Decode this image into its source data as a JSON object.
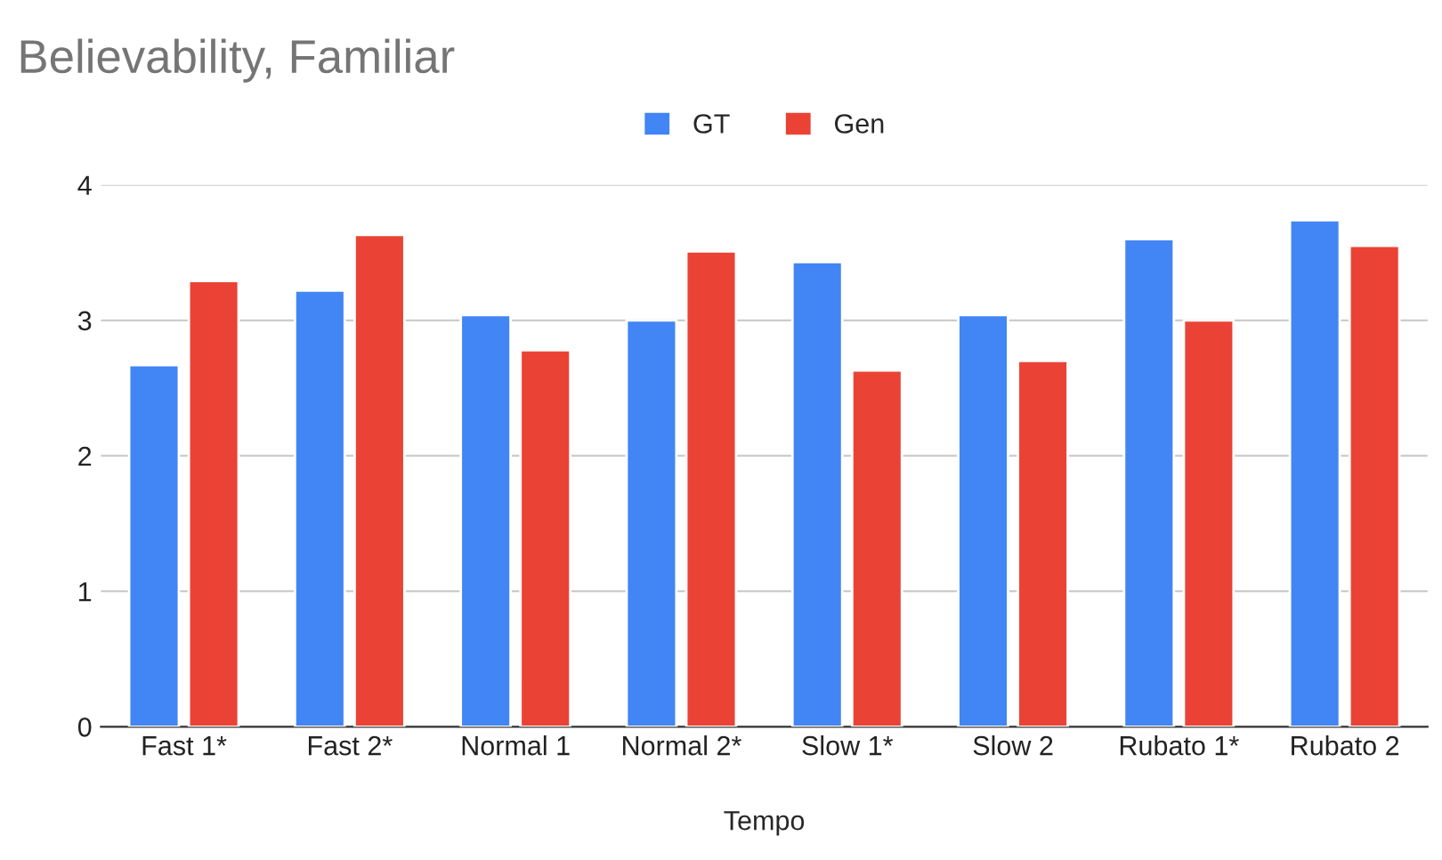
{
  "chart_data": {
    "type": "bar",
    "title": "Believability, Familiar",
    "xlabel": "Tempo",
    "categories": [
      "Fast 1*",
      "Fast 2*",
      "Normal 1",
      "Normal 2*",
      "Slow 1*",
      "Slow 2",
      "Rubato 1*",
      "Rubato 2"
    ],
    "series": [
      {
        "name": "GT",
        "color": "#4285f4",
        "values": [
          2.67,
          3.22,
          3.04,
          3.0,
          3.43,
          3.04,
          3.6,
          3.74
        ]
      },
      {
        "name": "Gen",
        "color": "#ea4335",
        "values": [
          3.29,
          3.63,
          2.78,
          3.51,
          2.63,
          2.7,
          3.0,
          3.55
        ]
      }
    ],
    "ylim": [
      0,
      4
    ],
    "yticks": [
      0,
      1,
      2,
      3,
      4
    ],
    "grid": "y",
    "legend": "top"
  }
}
